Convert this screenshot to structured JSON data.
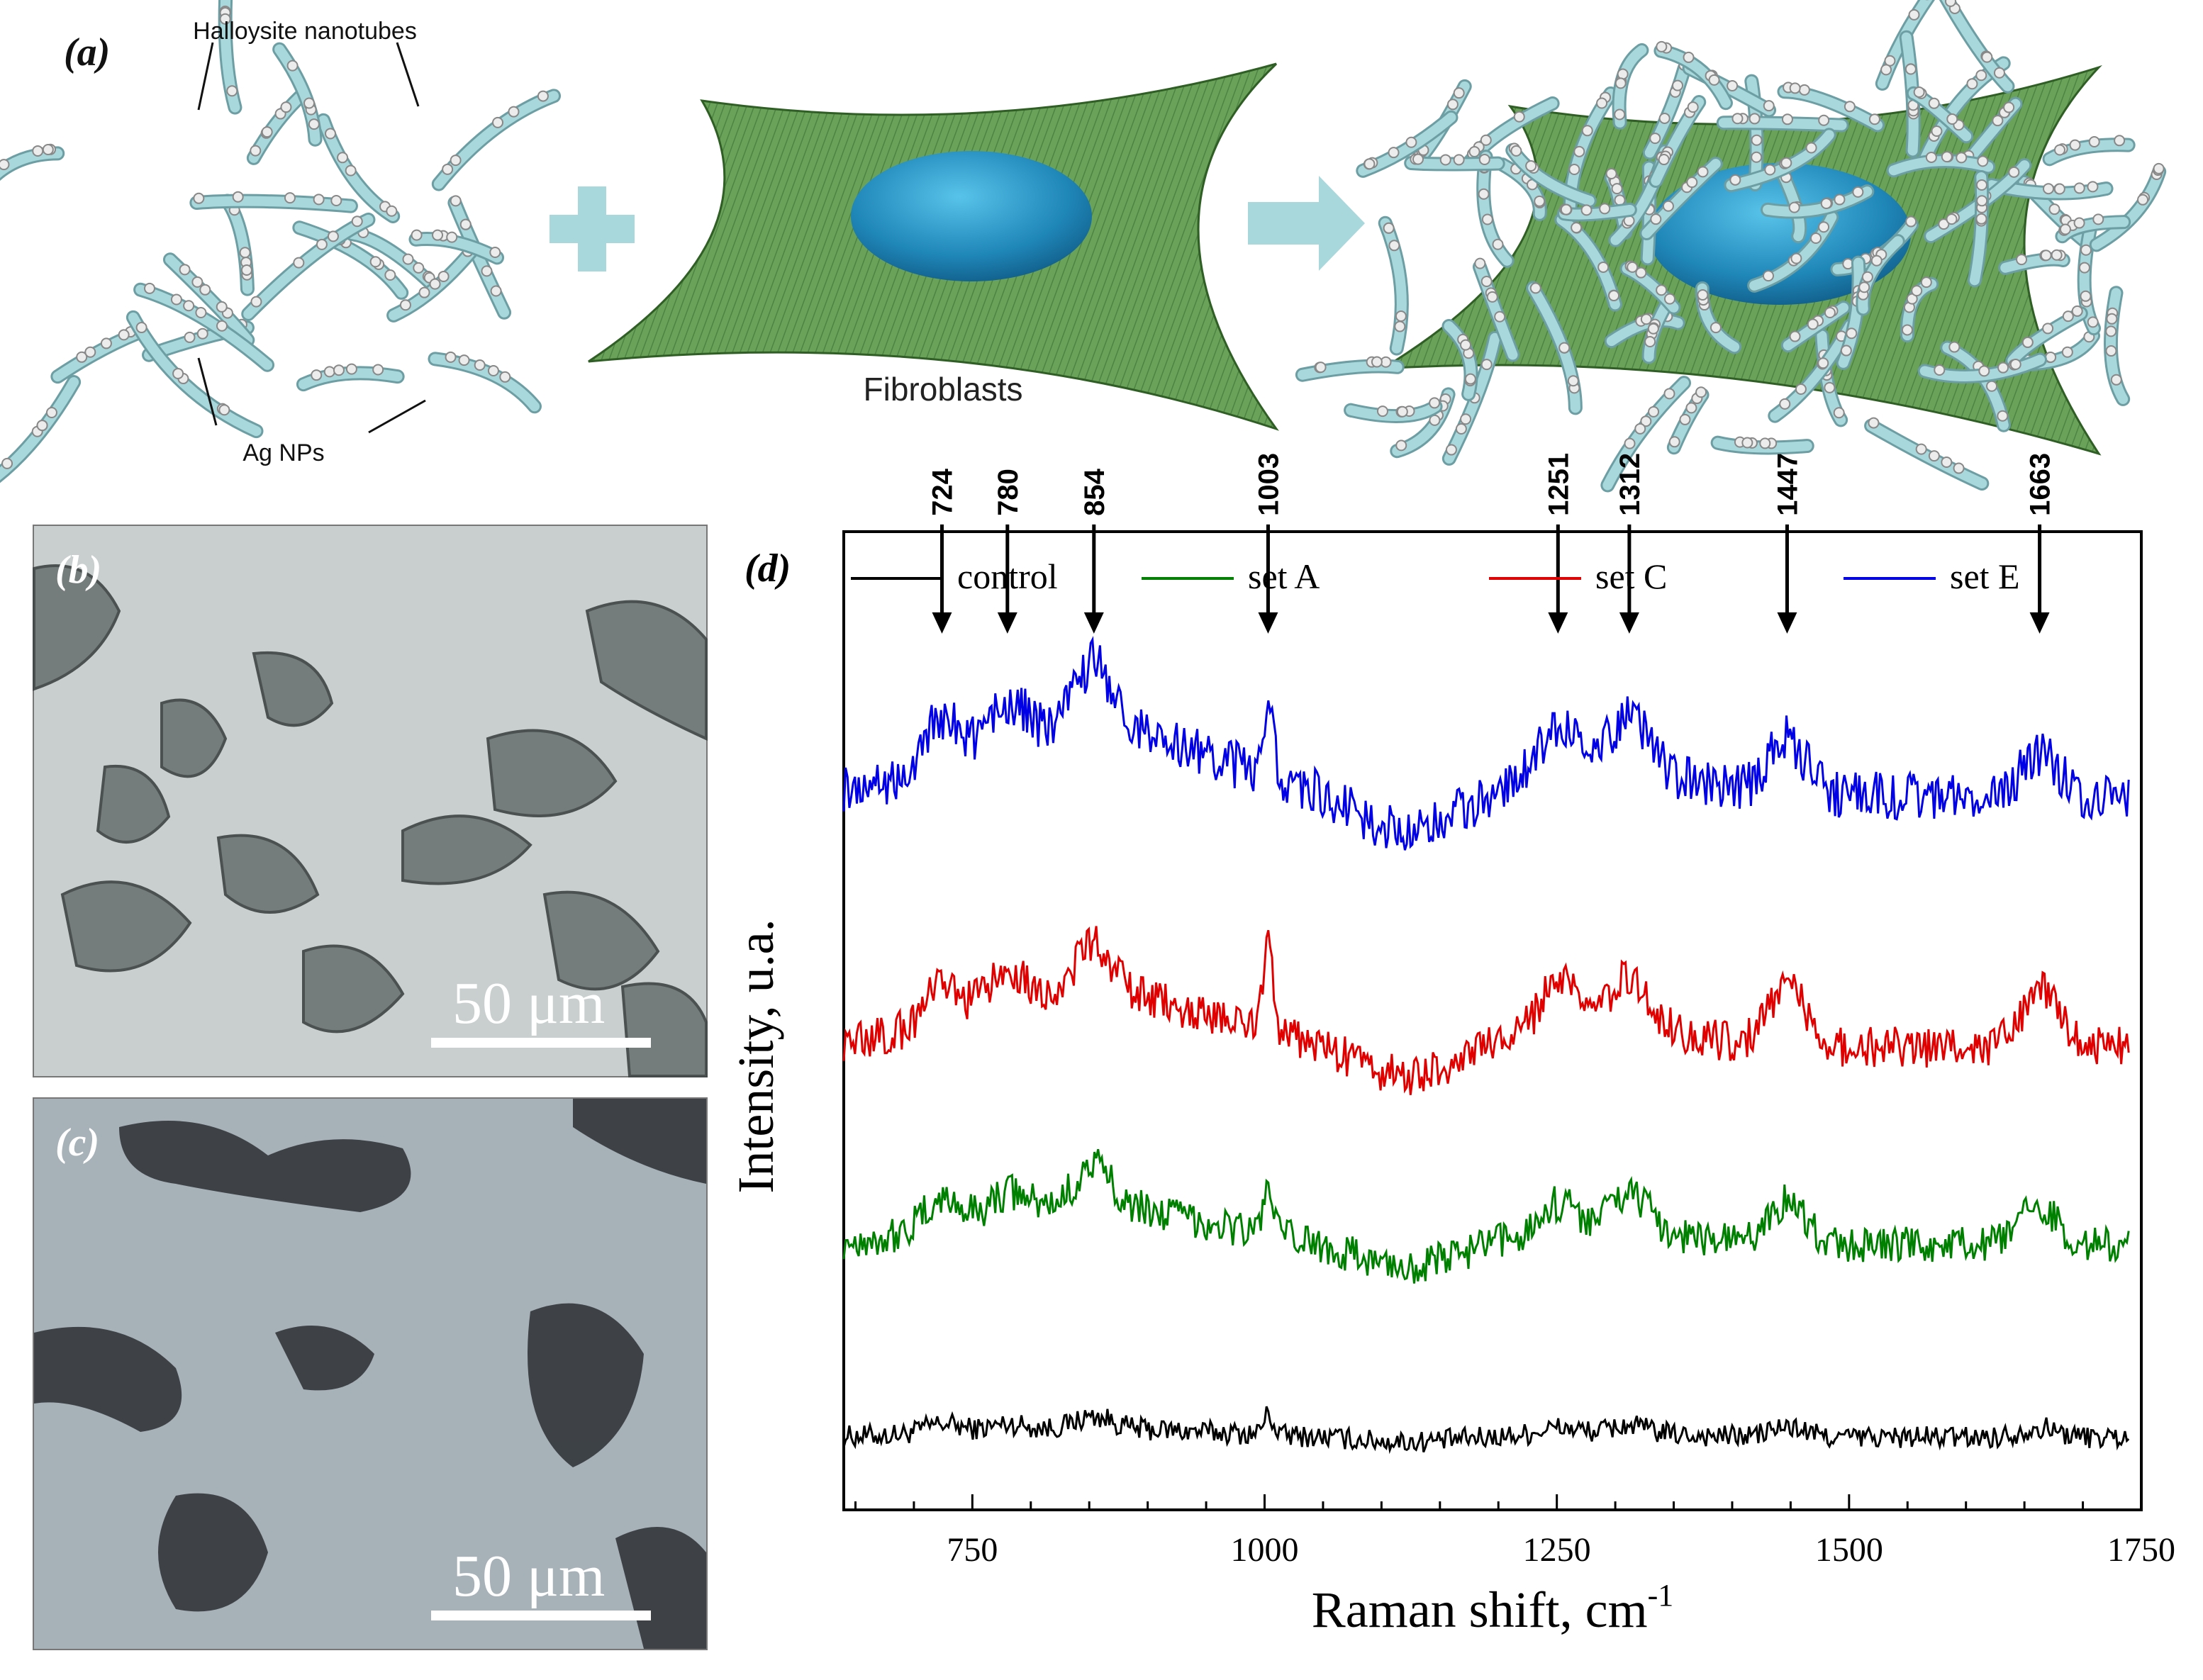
{
  "panel_a": {
    "letter": "(a)",
    "label_halloysite": "Halloysite nanotubes",
    "label_ag_nps": "Ag NPs",
    "label_fibroblasts": "Fibroblasts"
  },
  "panel_b": {
    "letter": "(b)",
    "scale_label": "50 μm"
  },
  "panel_c": {
    "letter": "(c)",
    "scale_label": "50 μm"
  },
  "colors": {
    "control": "#000000",
    "set_a": "#008000",
    "set_c": "#e00000",
    "set_e": "#0000e6",
    "tube": "#a9d8dc",
    "cell_body": "#5f9a4e",
    "nucleus": "#2b98c8"
  },
  "chart_data": {
    "type": "line",
    "panel_letter": "(d)",
    "xlabel": "Raman shift, cm",
    "xlabel_superscript": "-1",
    "ylabel": "Intensity, u.a.",
    "xlim": [
      640,
      1750
    ],
    "x_ticks": [
      750,
      1000,
      1250,
      1500,
      1750
    ],
    "y_ticks_shown": false,
    "legend_position": "top",
    "series": [
      {
        "name": "control",
        "color": "#000000",
        "baseline": 0.35,
        "peaks": [
          [
            724,
            0.12
          ],
          [
            780,
            0.08
          ],
          [
            854,
            0.15
          ],
          [
            1003,
            0.25
          ],
          [
            1251,
            0.08
          ],
          [
            1312,
            0.1
          ],
          [
            1447,
            0.12
          ],
          [
            1663,
            0.12
          ]
        ],
        "noise": 0.12,
        "broad": 0.12
      },
      {
        "name": "set A",
        "color": "#008000",
        "baseline": 1.8,
        "peaks": [
          [
            724,
            0.35
          ],
          [
            780,
            0.28
          ],
          [
            854,
            0.5
          ],
          [
            1003,
            0.6
          ],
          [
            1251,
            0.35
          ],
          [
            1312,
            0.45
          ],
          [
            1447,
            0.55
          ],
          [
            1663,
            0.5
          ]
        ],
        "noise": 0.2,
        "broad": 0.55
      },
      {
        "name": "set C",
        "color": "#e00000",
        "baseline": 3.3,
        "peaks": [
          [
            724,
            0.45
          ],
          [
            780,
            0.45
          ],
          [
            854,
            0.6
          ],
          [
            1003,
            1.25
          ],
          [
            1251,
            0.55
          ],
          [
            1312,
            0.6
          ],
          [
            1447,
            0.8
          ],
          [
            1663,
            0.7
          ]
        ],
        "noise": 0.22,
        "broad": 0.75
      },
      {
        "name": "set E",
        "color": "#0000e6",
        "baseline": 5.2,
        "peaks": [
          [
            724,
            0.6
          ],
          [
            780,
            0.5
          ],
          [
            854,
            0.8
          ],
          [
            1003,
            0.95
          ],
          [
            1251,
            0.55
          ],
          [
            1312,
            0.65
          ],
          [
            1447,
            0.7
          ],
          [
            1663,
            0.55
          ]
        ],
        "noise": 0.26,
        "broad": 0.95
      }
    ],
    "annotations": [
      {
        "label": "724",
        "x": 724
      },
      {
        "label": "780",
        "x": 780
      },
      {
        "label": "854",
        "x": 854
      },
      {
        "label": "1003",
        "x": 1003
      },
      {
        "label": "1251",
        "x": 1251
      },
      {
        "label": "1312",
        "x": 1312
      },
      {
        "label": "1447",
        "x": 1447
      },
      {
        "label": "1663",
        "x": 1663
      }
    ]
  }
}
